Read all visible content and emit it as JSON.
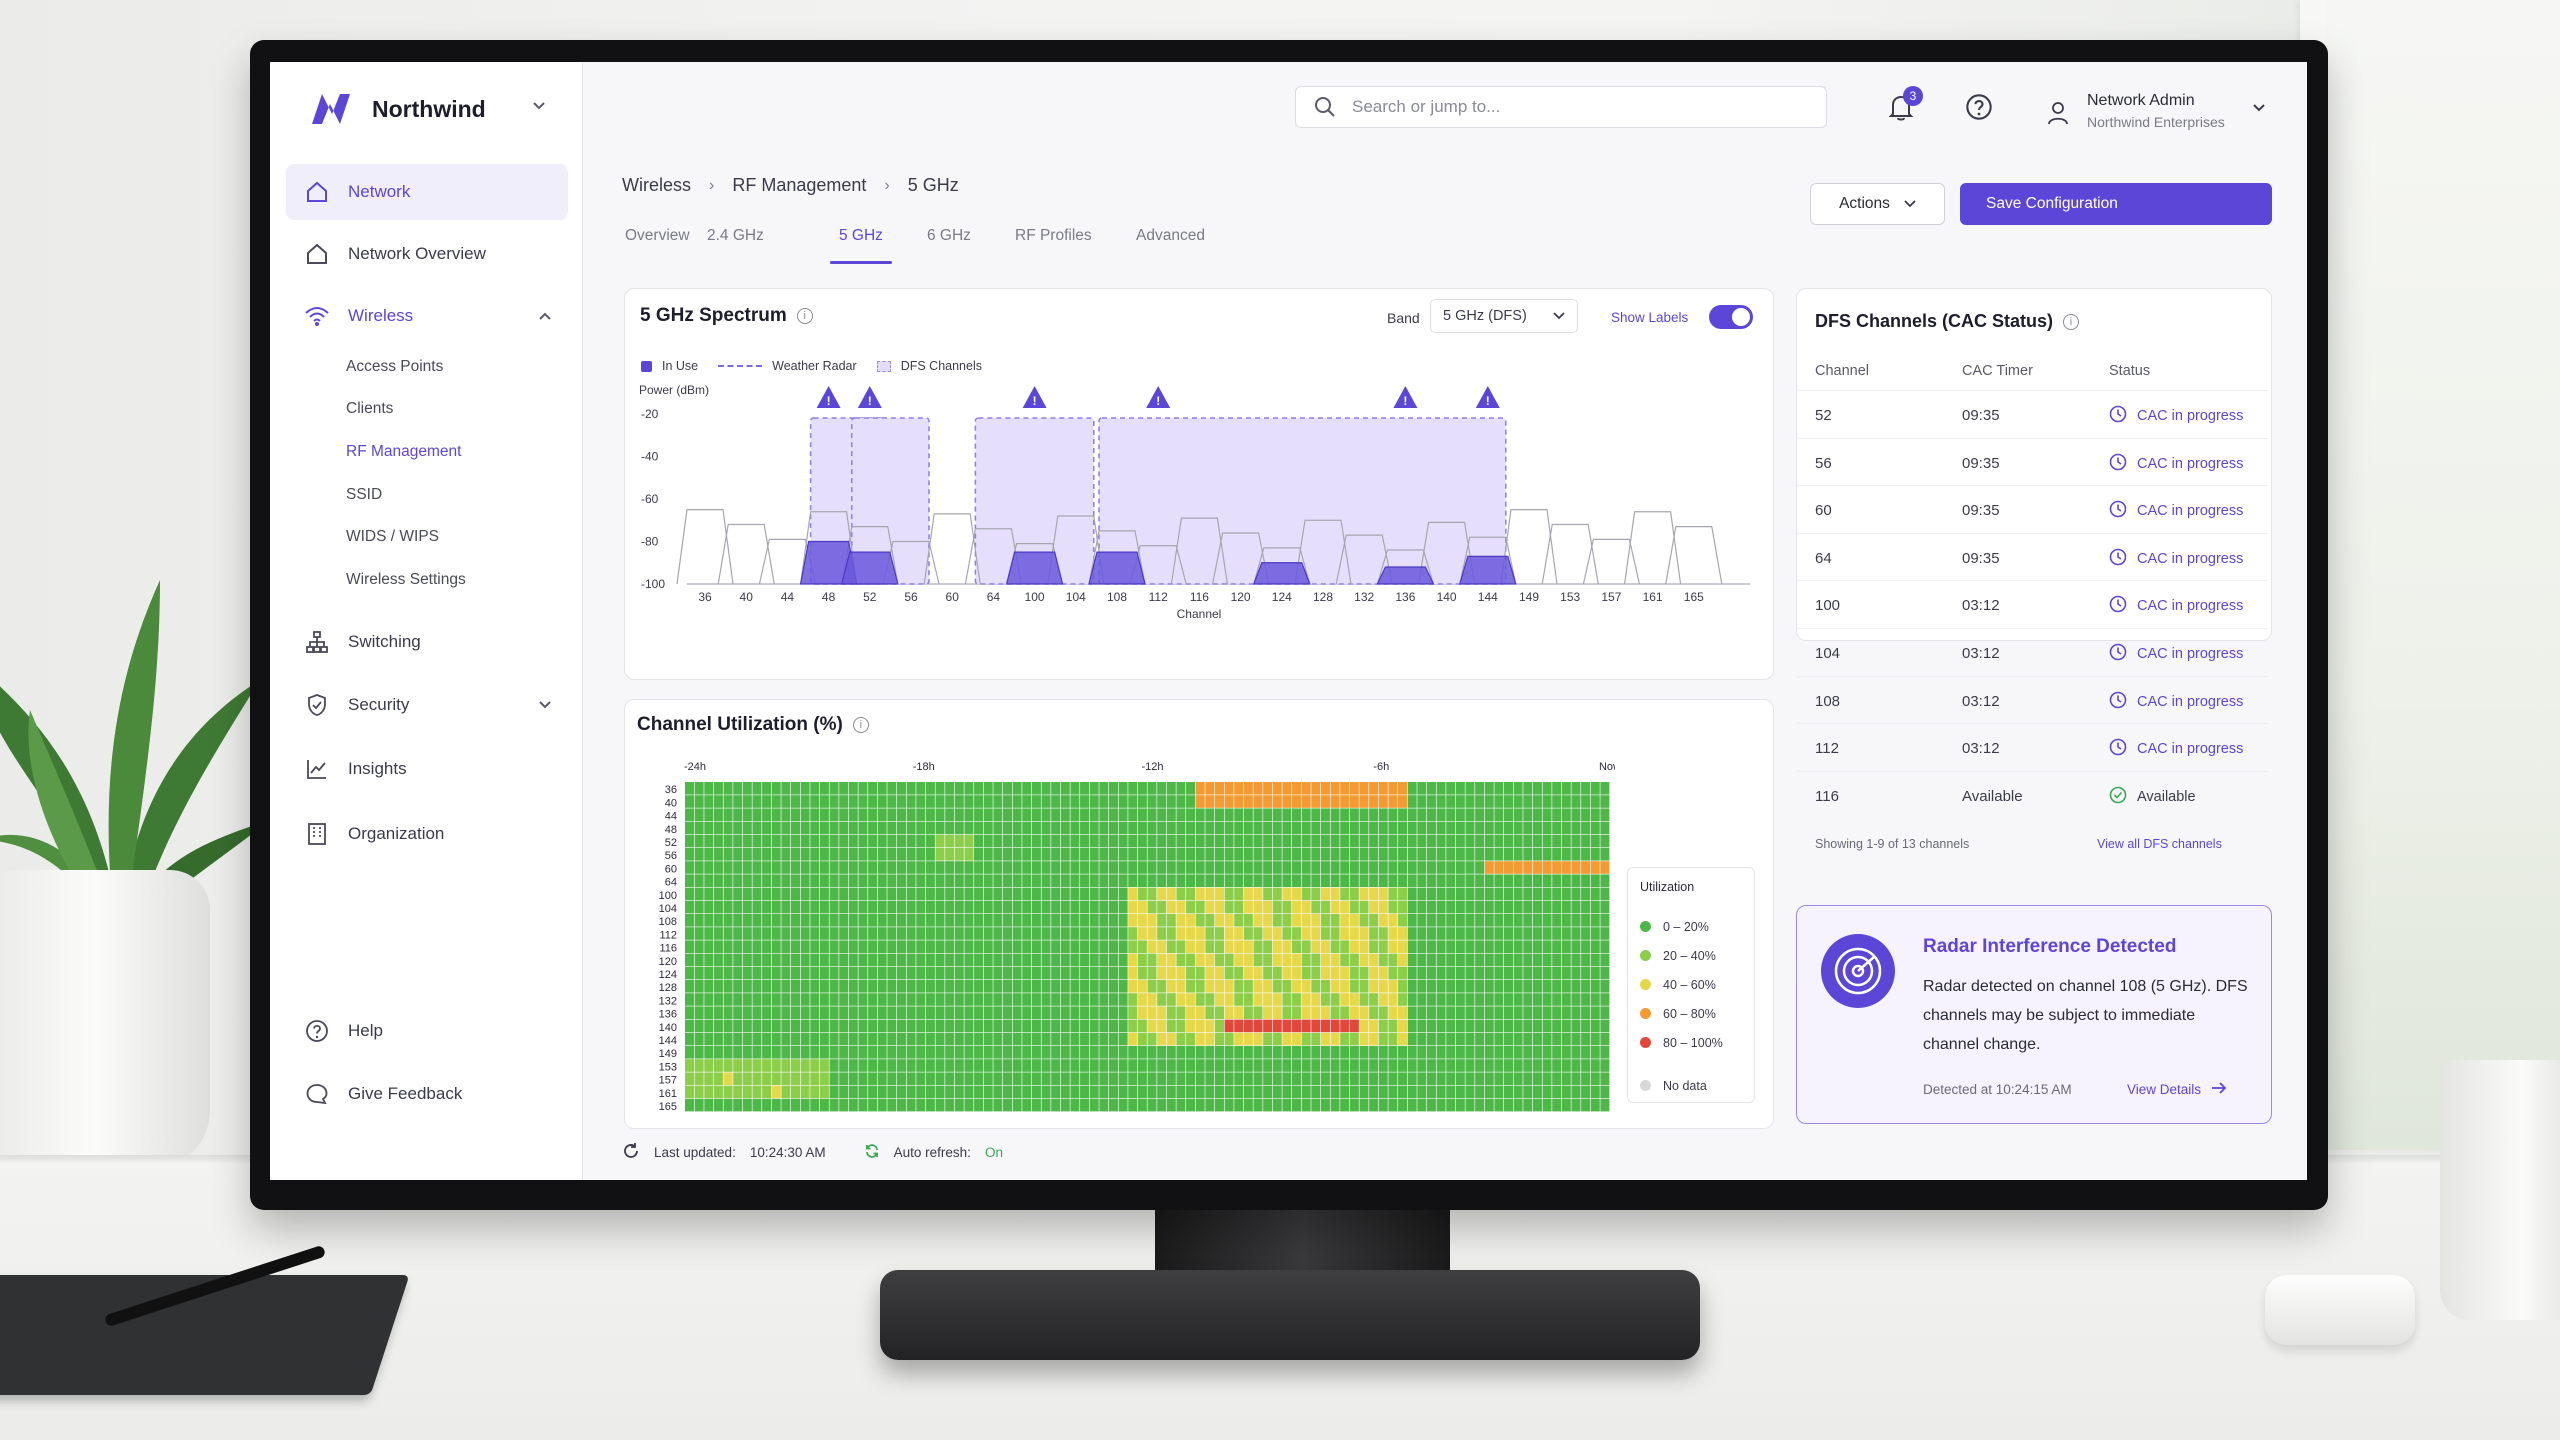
{
  "brand": {
    "name": "Northwind"
  },
  "sidebar": {
    "items": [
      {
        "label": "Network",
        "icon": "home-icon"
      },
      {
        "label": "Network Overview",
        "icon": "home-icon"
      },
      {
        "label": "Wireless",
        "icon": "wifi-icon"
      },
      {
        "label": "Switching",
        "icon": "switch-icon"
      },
      {
        "label": "Security",
        "icon": "shield-icon"
      },
      {
        "label": "Insights",
        "icon": "chart-line-icon"
      },
      {
        "label": "Organization",
        "icon": "building-icon"
      }
    ],
    "wireless_sub": [
      "Access Points",
      "Clients",
      "RF Management",
      "SSID",
      "WIDS / WIPS",
      "Wireless Settings"
    ],
    "bottom": [
      {
        "label": "Help",
        "icon": "help-circle-icon"
      },
      {
        "label": "Give Feedback",
        "icon": "chat-bubble-icon"
      }
    ]
  },
  "topbar": {
    "search_placeholder": "Search or jump to...",
    "notification_count": "3",
    "user_name": "Network Admin",
    "user_org": "Northwind Enterprises"
  },
  "breadcrumb": [
    "Wireless",
    "RF Management",
    "5 GHz"
  ],
  "tabs": [
    "Overview",
    "2.4 GHz",
    "5 GHz",
    "6 GHz",
    "RF Profiles",
    "Advanced"
  ],
  "active_tab": "5 GHz",
  "actions_label": "Actions",
  "save_label": "Save Configuration",
  "spectrum": {
    "title": "5 GHz Spectrum",
    "band_label": "Band",
    "band_value": "5 GHz (DFS)",
    "show_labels": "Show Labels",
    "show_labels_on": true,
    "legend": {
      "in_use": "In Use",
      "weather_radar": "Weather Radar",
      "dfs": "DFS Channels"
    }
  },
  "chart_data": [
    {
      "type": "area",
      "title": "5 GHz Spectrum",
      "xlabel": "Channel",
      "ylabel": "Power (dBm)",
      "categories": [
        "36",
        "40",
        "44",
        "48",
        "52",
        "56",
        "60",
        "64",
        "100",
        "104",
        "108",
        "112",
        "116",
        "120",
        "124",
        "128",
        "132",
        "136",
        "140",
        "144",
        "149",
        "153",
        "157",
        "161",
        "165"
      ],
      "y_ticks": [
        "-20",
        "-40",
        "-60",
        "-80",
        "-100"
      ],
      "ylim": [
        -100,
        -20
      ],
      "in_use_channels": [
        48,
        52,
        100,
        108,
        124,
        136,
        144
      ],
      "in_use_power": [
        -80,
        -85,
        -85,
        -85,
        -90,
        -92,
        -87
      ],
      "radar_warning_channels": [
        48,
        52,
        100,
        112,
        136,
        144
      ],
      "dfs_channel_blocks": [
        [
          48,
          52
        ],
        [
          52,
          56
        ],
        [
          64,
          104
        ],
        [
          108,
          144
        ]
      ]
    },
    {
      "type": "heatmap",
      "title": "Channel Utilization (%)",
      "x_labels": [
        "-24h",
        "-18h",
        "-12h",
        "-6h",
        "Now"
      ],
      "y_labels": [
        "36",
        "40",
        "44",
        "48",
        "52",
        "56",
        "60",
        "64",
        "100",
        "104",
        "108",
        "112",
        "116",
        "120",
        "124",
        "128",
        "132",
        "136",
        "140",
        "144",
        "149",
        "153",
        "157",
        "161",
        "165"
      ],
      "legend_title": "Utilization",
      "bins": [
        "0 – 20%",
        "20 – 40%",
        "40 – 60%",
        "60 – 80%",
        "80 – 100%",
        "No data"
      ],
      "bin_colors": [
        "#4db848",
        "#8cce4a",
        "#e6d84a",
        "#f39a32",
        "#e2473c",
        "#d8d8d8"
      ]
    }
  ],
  "dfs": {
    "title": "DFS Channels (CAC Status)",
    "columns": [
      "Channel",
      "CAC Timer",
      "Status"
    ],
    "rows": [
      {
        "channel": "52",
        "timer": "09:35",
        "status": "CAC in progress"
      },
      {
        "channel": "56",
        "timer": "09:35",
        "status": "CAC in progress"
      },
      {
        "channel": "60",
        "timer": "09:35",
        "status": "CAC in progress"
      },
      {
        "channel": "64",
        "timer": "09:35",
        "status": "CAC in progress"
      },
      {
        "channel": "100",
        "timer": "03:12",
        "status": "CAC in progress"
      },
      {
        "channel": "104",
        "timer": "03:12",
        "status": "CAC in progress"
      },
      {
        "channel": "108",
        "timer": "03:12",
        "status": "CAC in progress"
      },
      {
        "channel": "112",
        "timer": "03:12",
        "status": "CAC in progress"
      },
      {
        "channel": "116",
        "timer": "Available",
        "status": "Available"
      }
    ],
    "showing": "Showing 1-9 of 13 channels",
    "view_all": "View all DFS channels"
  },
  "radar": {
    "title": "Radar Interference Detected",
    "message": "Radar detected on channel 108 (5 GHz). DFS channels may be subject to immediate channel change.",
    "detected": "Detected at 10:24:15 AM",
    "view_details": "View Details"
  },
  "status": {
    "last_updated_label": "Last updated:",
    "last_updated": "10:24:30 AM",
    "auto_refresh_label": "Auto refresh:",
    "auto_refresh": "On"
  },
  "colors": {
    "accent": "#5b46d8",
    "success": "#3aa655"
  }
}
